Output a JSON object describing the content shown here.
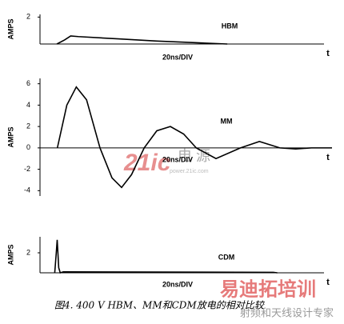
{
  "chart_data": [
    {
      "type": "line",
      "y_label": "AMPS",
      "x_label": "20ns/DIV",
      "axis_end": "t",
      "annotation": "HBM",
      "color": "#000000",
      "xlim": [
        0,
        185
      ],
      "ylim": [
        0,
        2.2
      ],
      "yticks": [
        2
      ],
      "x": [
        11,
        16,
        20,
        25,
        51,
        76,
        101,
        122
      ],
      "values": [
        0,
        0.3,
        0.6,
        0.55,
        0.38,
        0.22,
        0.1,
        0
      ]
    },
    {
      "type": "line",
      "y_label": "AMPS",
      "x_label": "20ns/DIV",
      "axis_end": "t",
      "annotation": "MM",
      "color": "#000000",
      "xlim": [
        0,
        185
      ],
      "ylim": [
        -4.5,
        6.5
      ],
      "yticks": [
        6,
        4,
        2,
        0,
        -2,
        -4
      ],
      "x": [
        11,
        17,
        23,
        29.5,
        38,
        45.6,
        51.7,
        58,
        66,
        74,
        82.6,
        91,
        99,
        111.5,
        127,
        139,
        152,
        162,
        172,
        185
      ],
      "values": [
        0,
        4.0,
        5.7,
        4.5,
        0,
        -2.8,
        -3.7,
        -2.5,
        0,
        1.6,
        2.0,
        1.3,
        0,
        -1.0,
        0,
        0.6,
        0,
        -0.1,
        0,
        0
      ]
    },
    {
      "type": "line",
      "y_label": "AMPS",
      "x_label": "20ns/DIV",
      "axis_end": "t",
      "annotation": "CDM",
      "color": "#000000",
      "xlim": [
        0,
        185
      ],
      "ylim": [
        0,
        3.6
      ],
      "yticks": [
        2
      ],
      "x": [
        9.6,
        10.6,
        11.2,
        12.2,
        13.2,
        15.2,
        152,
        154.6
      ],
      "values": [
        0,
        2,
        3.3,
        0.5,
        0,
        0.1,
        0.05,
        0
      ]
    }
  ],
  "caption": "图4. 400 V HBM、MM和CDM放电的相对比较",
  "watermark": {
    "brand": "21ic",
    "brand_cn": "电 源",
    "site": "power.21ic.com",
    "logo": "易迪拓培训",
    "slogan": "射频和天线设计专家"
  }
}
